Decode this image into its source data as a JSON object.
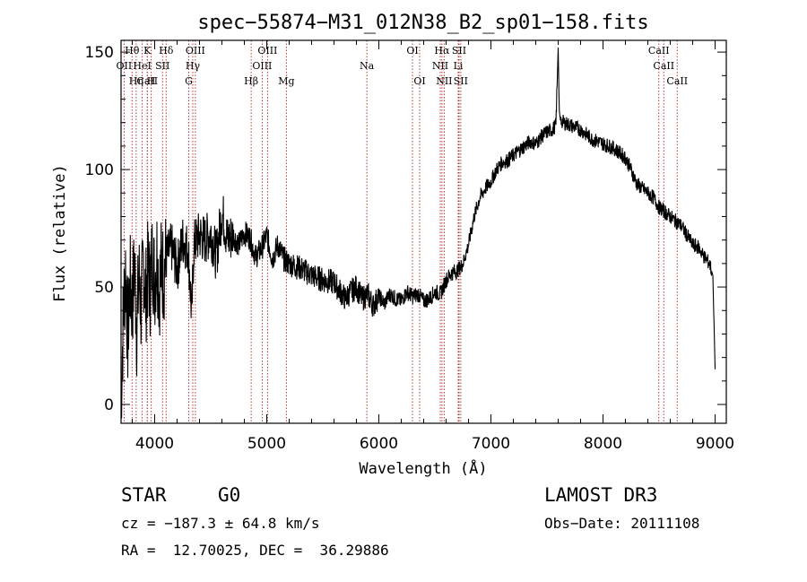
{
  "chart_data": {
    "type": "line",
    "title": "spec−55874−M31_012N38_B2_sp01−158.fits",
    "xlabel": "Wavelength (Å)",
    "ylabel": "Flux (relative)",
    "xlim": [
      3700,
      9100
    ],
    "ylim": [
      -8,
      155
    ],
    "xticks": [
      4000,
      5000,
      6000,
      7000,
      8000,
      9000
    ],
    "yticks": [
      0,
      50,
      100,
      150
    ],
    "series": [
      {
        "name": "spectrum",
        "x": [
          3700,
          3720,
          3740,
          3760,
          3780,
          3800,
          3820,
          3840,
          3860,
          3880,
          3900,
          3920,
          3940,
          3960,
          3980,
          4000,
          4020,
          4040,
          4060,
          4080,
          4100,
          4150,
          4200,
          4250,
          4300,
          4330,
          4350,
          4400,
          4450,
          4500,
          4550,
          4600,
          4650,
          4700,
          4750,
          4800,
          4850,
          4900,
          4950,
          5000,
          5050,
          5100,
          5150,
          5200,
          5300,
          5400,
          5500,
          5600,
          5700,
          5750,
          5800,
          5850,
          5900,
          5950,
          6000,
          6050,
          6100,
          6150,
          6200,
          6250,
          6300,
          6350,
          6400,
          6450,
          6500,
          6550,
          6600,
          6650,
          6700,
          6720,
          6750,
          6800,
          6850,
          6900,
          6950,
          7000,
          7050,
          7100,
          7150,
          7200,
          7250,
          7300,
          7350,
          7400,
          7450,
          7500,
          7550,
          7580,
          7600,
          7610,
          7620,
          7650,
          7700,
          7750,
          7800,
          7850,
          7900,
          7950,
          8000,
          8050,
          8100,
          8150,
          8200,
          8250,
          8300,
          8350,
          8400,
          8450,
          8500,
          8550,
          8600,
          8650,
          8700,
          8750,
          8800,
          8850,
          8900,
          8950,
          8980,
          9000
        ],
        "y": [
          2,
          38,
          58,
          28,
          52,
          42,
          60,
          32,
          55,
          40,
          62,
          45,
          58,
          50,
          64,
          52,
          65,
          48,
          60,
          55,
          62,
          67,
          58,
          70,
          66,
          38,
          68,
          72,
          70,
          73,
          63,
          82,
          70,
          72,
          68,
          73,
          71,
          63,
          66,
          72,
          62,
          68,
          62,
          60,
          58,
          55,
          53,
          52,
          45,
          48,
          50,
          45,
          47,
          42,
          46,
          43,
          47,
          45,
          44,
          48,
          46,
          47,
          44,
          45,
          48,
          47,
          53,
          56,
          57,
          58,
          60,
          68,
          80,
          88,
          92,
          95,
          100,
          103,
          104,
          106,
          108,
          110,
          112,
          111,
          114,
          116,
          117,
          119,
          152,
          125,
          121,
          120,
          119,
          118,
          117,
          115,
          113,
          112,
          111,
          110,
          109,
          107,
          105,
          100,
          94,
          92,
          90,
          88,
          84,
          82,
          80,
          78,
          76,
          72,
          68,
          67,
          63,
          60,
          55,
          15
        ]
      }
    ],
    "lines": [
      {
        "name": "CaII",
        "wave": 3934,
        "label_row": 3
      },
      {
        "name": "Hθ",
        "wave": 3798,
        "label_row": 1
      },
      {
        "name": "K",
        "wave": 3934,
        "label_row": 1
      },
      {
        "name": "H",
        "wave": 3969,
        "label_row": 3
      },
      {
        "name": "OII",
        "wave": 3727,
        "label_row": 2
      },
      {
        "name": "HeI",
        "wave": 3889,
        "label_row": 2
      },
      {
        "name": "Hη",
        "wave": 3835,
        "label_row": 3
      },
      {
        "name": "SII",
        "wave": 4070,
        "label_row": 2
      },
      {
        "name": "Hδ",
        "wave": 4102,
        "label_row": 1
      },
      {
        "name": "OIII",
        "wave": 4363,
        "label_row": 1
      },
      {
        "name": "Hγ",
        "wave": 4340,
        "label_row": 2
      },
      {
        "name": "G",
        "wave": 4304,
        "label_row": 3
      },
      {
        "name": "Hβ",
        "wave": 4861,
        "label_row": 3
      },
      {
        "name": "OIII",
        "wave": 4959,
        "label_row": 2
      },
      {
        "name": "OIII",
        "wave": 5007,
        "label_row": 1
      },
      {
        "name": "Mg",
        "wave": 5175,
        "label_row": 3
      },
      {
        "name": "Na",
        "wave": 5893,
        "label_row": 2
      },
      {
        "name": "OI",
        "wave": 6300,
        "label_row": 1
      },
      {
        "name": "OI",
        "wave": 6364,
        "label_row": 3
      },
      {
        "name": "Hα",
        "wave": 6563,
        "label_row": 1
      },
      {
        "name": "NII",
        "wave": 6548,
        "label_row": 2
      },
      {
        "name": "NII",
        "wave": 6583,
        "label_row": 3
      },
      {
        "name": "SII",
        "wave": 6716,
        "label_row": 1
      },
      {
        "name": "Li",
        "wave": 6708,
        "label_row": 2
      },
      {
        "name": "SII",
        "wave": 6731,
        "label_row": 3
      },
      {
        "name": "CaII",
        "wave": 8498,
        "label_row": 1
      },
      {
        "name": "CaII",
        "wave": 8542,
        "label_row": 2
      },
      {
        "name": "CaII",
        "wave": 8662,
        "label_row": 3
      }
    ]
  },
  "info": {
    "class": "STAR",
    "subclass": "G0",
    "survey": "LAMOST DR3",
    "cz": "cz = −187.3 ± 64.8 km/s",
    "obs_date": "Obs−Date: 20111108",
    "radec": "RA =  12.70025, DEC =  36.29886"
  },
  "colors": {
    "spectrum": "#000000",
    "line_marker": "#b22222",
    "background": "#ffffff"
  }
}
